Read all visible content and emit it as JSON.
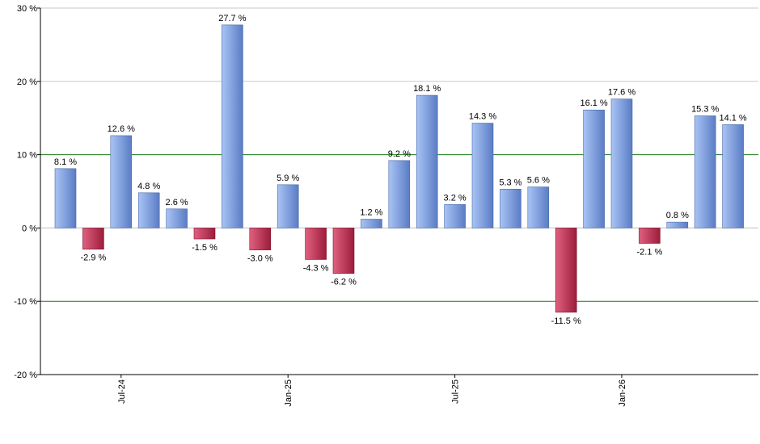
{
  "chart_data": {
    "type": "bar",
    "ylim": [
      -20,
      30
    ],
    "y_ticks": [
      {
        "value": 30,
        "label": "30 %"
      },
      {
        "value": 20,
        "label": "20 %"
      },
      {
        "value": 10,
        "label": "10 %"
      },
      {
        "value": 0,
        "label": "0 %"
      },
      {
        "value": -10,
        "label": "-10 %"
      },
      {
        "value": -20,
        "label": "-20 %"
      }
    ],
    "grid": true,
    "reference_lines": [
      10,
      -10
    ],
    "x_tick_labels": [
      {
        "index": 2,
        "label": "Jul-24"
      },
      {
        "index": 8,
        "label": "Jan-25"
      },
      {
        "index": 14,
        "label": "Jul-25"
      },
      {
        "index": 20,
        "label": "Jan-26"
      }
    ],
    "values": [
      8.1,
      -2.9,
      12.6,
      4.8,
      2.6,
      -1.5,
      27.7,
      -3.0,
      5.9,
      -4.3,
      -6.2,
      1.2,
      9.2,
      18.1,
      3.2,
      14.3,
      5.3,
      5.6,
      -11.5,
      16.1,
      17.6,
      -2.1,
      0.8,
      15.3,
      14.1
    ],
    "data_labels": [
      "8.1 %",
      "-2.9 %",
      "12.6 %",
      "4.8 %",
      "2.6 %",
      "-1.5 %",
      "27.7 %",
      "-3.0 %",
      "5.9 %",
      "-4.3 %",
      "-6.2 %",
      "1.2 %",
      "9.2 %",
      "18.1 %",
      "3.2 %",
      "14.3 %",
      "5.3 %",
      "5.6 %",
      "-11.5 %",
      "16.1 %",
      "17.6 %",
      "-2.1 %",
      "0.8 %",
      "15.3 %",
      "14.1 %"
    ],
    "colors": {
      "positive_light": "#a9c4f5",
      "positive_dark": "#5a7cc4",
      "negative_light": "#e06080",
      "negative_dark": "#9c1c3a",
      "grid": "#c8c8c8",
      "reference": "#1a7a1a",
      "axis": "#000000"
    }
  }
}
